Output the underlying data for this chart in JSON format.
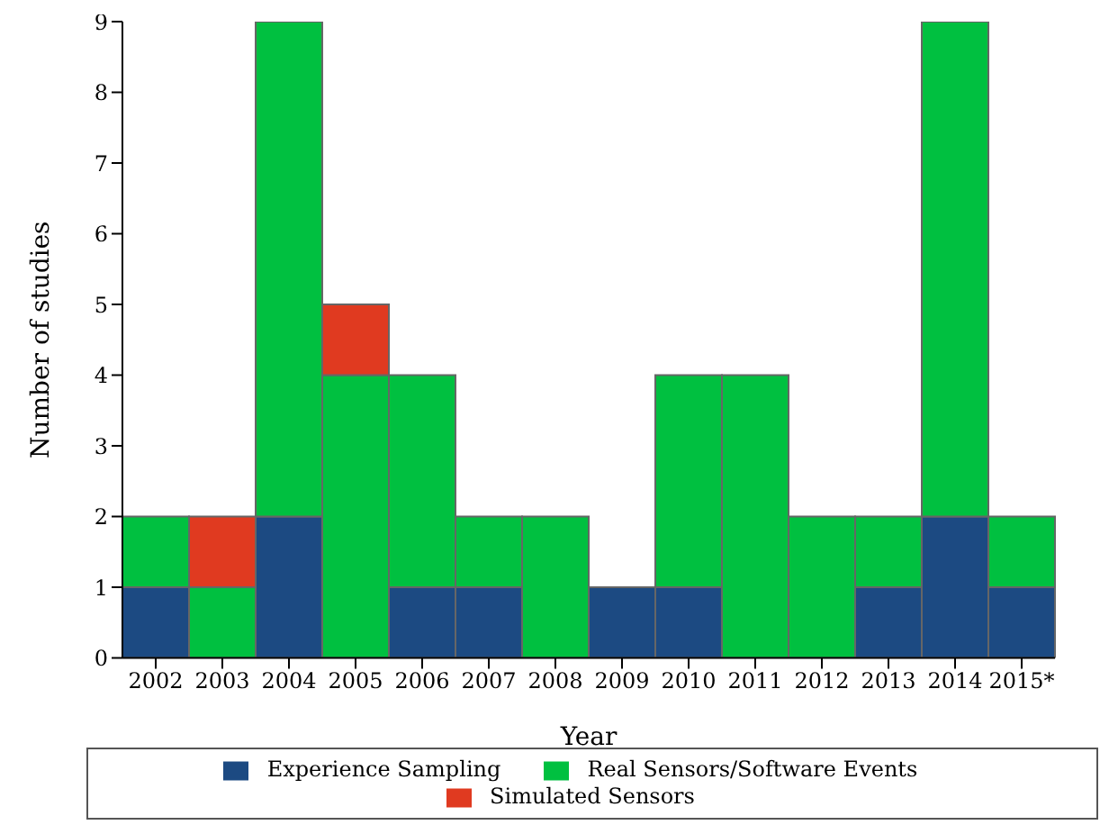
{
  "chart_data": {
    "type": "bar",
    "stacked": true,
    "xlabel": "Year",
    "ylabel": "Number of studies",
    "categories": [
      "2002",
      "2003",
      "2004",
      "2005",
      "2006",
      "2007",
      "2008",
      "2009",
      "2010",
      "2011",
      "2012",
      "2013",
      "2014",
      "2015*"
    ],
    "series": [
      {
        "name": "Experience Sampling",
        "color": "#1c4a82",
        "values": [
          1,
          0,
          2,
          0,
          1,
          1,
          0,
          1,
          1,
          0,
          0,
          1,
          2,
          1
        ]
      },
      {
        "name": "Real Sensors/Software Events",
        "color": "#00c040",
        "values": [
          1,
          1,
          7,
          4,
          3,
          1,
          2,
          0,
          3,
          4,
          2,
          1,
          7,
          1
        ]
      },
      {
        "name": "Simulated Sensors",
        "color": "#e03a20",
        "values": [
          0,
          1,
          0,
          1,
          0,
          0,
          0,
          0,
          0,
          0,
          0,
          0,
          0,
          0
        ]
      }
    ],
    "ylim": [
      0,
      9
    ],
    "yticks": [
      0,
      1,
      2,
      3,
      4,
      5,
      6,
      7,
      8,
      9
    ],
    "grid": false,
    "legend": "bottom"
  }
}
